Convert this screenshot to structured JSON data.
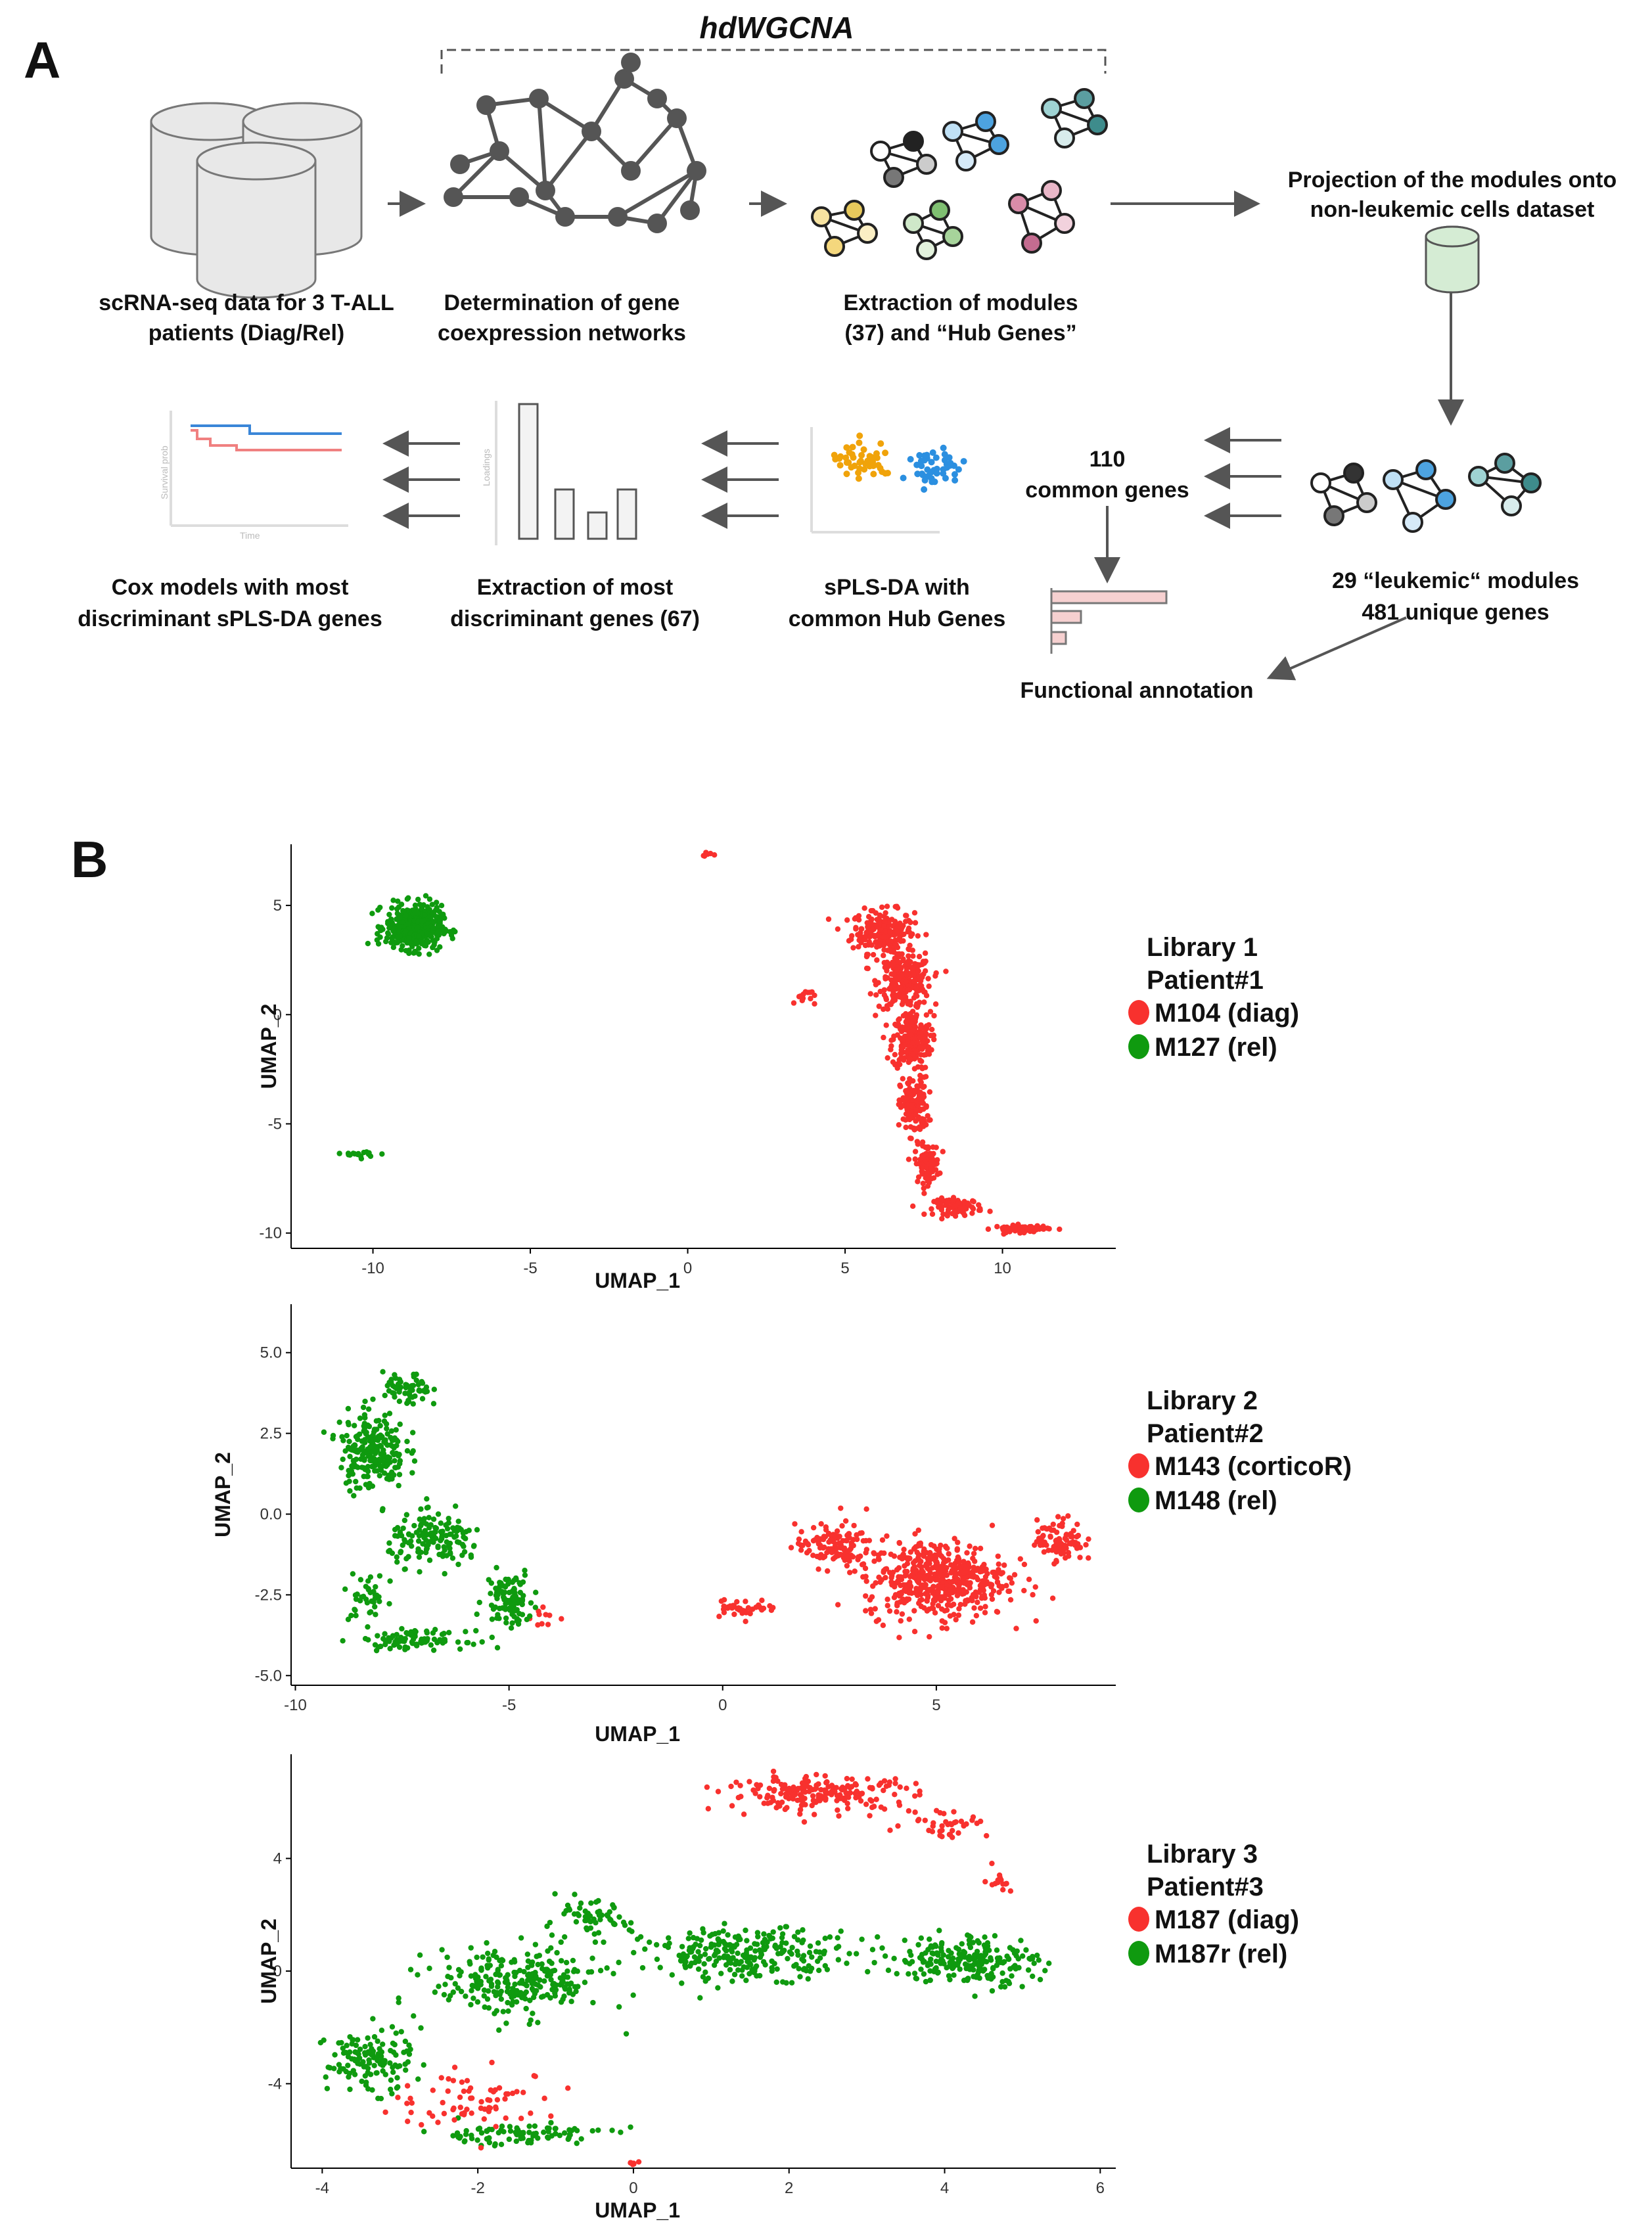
{
  "panel_a": {
    "letter": "A",
    "hdwgcna_label": "hdWGCNA",
    "steps": {
      "scrna_line1": "scRNA-seq data for 3 T-ALL",
      "scrna_line2": "patients (Diag/Rel)",
      "coexp_line1": "Determination of gene",
      "coexp_line2": "coexpression networks",
      "modules_line1": "Extraction of modules",
      "modules_line2": "(37) and “Hub Genes”",
      "projection_line1": "Projection of the modules onto",
      "projection_line2": "non-leukemic cells dataset",
      "leukemic_line1": "29 “leukemic“ modules",
      "leukemic_line2": "481 unique genes",
      "common_line1": "110",
      "common_line2": "common genes",
      "functional": "Functional annotation",
      "splsda_line1": "sPLS-DA with",
      "splsda_line2": "common Hub Genes",
      "discriminant_line1": "Extraction of most",
      "discriminant_line2": "discriminant genes (67)",
      "cox_line1": "Cox models with most",
      "cox_line2": "discriminant sPLS-DA genes"
    },
    "survival_axis": "Survival prob",
    "time_axis": "Time",
    "loadings_axis": "Loadings"
  },
  "panel_b": {
    "letter": "B",
    "colors": {
      "diag": "#f8312e",
      "rel": "#0f9a0f"
    }
  },
  "chart_data": [
    {
      "type": "scatter",
      "title": "Library 1",
      "xlabel": "UMAP_1",
      "ylabel": "UMAP_2",
      "xlim": [
        -12.6,
        13.6
      ],
      "ylim": [
        -10.7,
        7.8
      ],
      "xticks": [
        -10,
        -5,
        0,
        5,
        10
      ],
      "yticks": [
        -10,
        -5,
        0,
        5
      ],
      "legend": {
        "library": "Library 1",
        "patient": "Patient#1",
        "entries": [
          {
            "label": "M104 (diag)",
            "color": "#f8312e"
          },
          {
            "label": "M127 (rel)",
            "color": "#0f9a0f"
          }
        ]
      },
      "series": [
        {
          "name": "M104 (diag)",
          "clusters": [
            {
              "x": 6.2,
              "y": 3.8,
              "sx": 0.9,
              "sy": 0.9,
              "n": 220
            },
            {
              "x": 6.9,
              "y": 1.5,
              "sx": 0.75,
              "sy": 1.1,
              "n": 260
            },
            {
              "x": 7.1,
              "y": -1.2,
              "sx": 0.55,
              "sy": 1.2,
              "n": 220
            },
            {
              "x": 7.2,
              "y": -4.2,
              "sx": 0.4,
              "sy": 1.2,
              "n": 150
            },
            {
              "x": 7.6,
              "y": -6.8,
              "sx": 0.35,
              "sy": 0.8,
              "n": 90
            },
            {
              "x": 8.6,
              "y": -8.8,
              "sx": 0.7,
              "sy": 0.35,
              "n": 80
            },
            {
              "x": 10.6,
              "y": -9.8,
              "sx": 0.8,
              "sy": 0.15,
              "n": 70
            },
            {
              "x": 3.7,
              "y": 0.8,
              "sx": 0.3,
              "sy": 0.4,
              "n": 15
            },
            {
              "x": 0.7,
              "y": 7.3,
              "sx": 0.2,
              "sy": 0.1,
              "n": 6
            }
          ]
        },
        {
          "name": "M127 (rel)",
          "clusters": [
            {
              "x": -8.7,
              "y": 4.0,
              "sx": 0.8,
              "sy": 0.9,
              "n": 480
            },
            {
              "x": -10.2,
              "y": -6.4,
              "sx": 0.6,
              "sy": 0.15,
              "n": 16
            }
          ]
        }
      ]
    },
    {
      "type": "scatter",
      "title": "Library 2",
      "xlabel": "UMAP_1",
      "ylabel": "UMAP_2",
      "xlim": [
        -10.1,
        9.2
      ],
      "ylim": [
        -5.3,
        6.5
      ],
      "xticks": [
        -10,
        -5,
        0,
        5
      ],
      "yticks": [
        -5.0,
        -2.5,
        0.0,
        2.5,
        5.0
      ],
      "legend": {
        "library": "Library 2",
        "patient": "Patient#2",
        "entries": [
          {
            "label": "M143 (corticoR)",
            "color": "#f8312e"
          },
          {
            "label": "M148 (rel)",
            "color": "#0f9a0f"
          }
        ]
      },
      "series": [
        {
          "name": "M143 (corticoR)",
          "clusters": [
            {
              "x": 5.0,
              "y": -2.0,
              "sx": 1.5,
              "sy": 1.1,
              "n": 520
            },
            {
              "x": 2.6,
              "y": -1.0,
              "sx": 0.8,
              "sy": 0.6,
              "n": 120
            },
            {
              "x": 7.9,
              "y": -0.8,
              "sx": 0.5,
              "sy": 0.6,
              "n": 90
            },
            {
              "x": 0.5,
              "y": -2.9,
              "sx": 0.7,
              "sy": 0.25,
              "n": 40
            },
            {
              "x": -4.2,
              "y": -3.2,
              "sx": 0.3,
              "sy": 0.3,
              "n": 10
            }
          ]
        },
        {
          "name": "M148 (rel)",
          "clusters": [
            {
              "x": -8.2,
              "y": 2.0,
              "sx": 0.7,
              "sy": 1.1,
              "n": 220
            },
            {
              "x": -7.4,
              "y": 3.8,
              "sx": 0.5,
              "sy": 0.5,
              "n": 60
            },
            {
              "x": -6.7,
              "y": -0.8,
              "sx": 1.0,
              "sy": 0.7,
              "n": 150
            },
            {
              "x": -5.0,
              "y": -2.6,
              "sx": 0.5,
              "sy": 0.8,
              "n": 100
            },
            {
              "x": -7.2,
              "y": -3.9,
              "sx": 1.1,
              "sy": 0.25,
              "n": 90
            },
            {
              "x": -8.3,
              "y": -2.6,
              "sx": 0.4,
              "sy": 0.7,
              "n": 40
            }
          ]
        }
      ]
    },
    {
      "type": "scatter",
      "title": "Library 3",
      "xlabel": "UMAP_1",
      "ylabel": "UMAP_2",
      "xlim": [
        -4.4,
        6.2
      ],
      "ylim": [
        -7.0,
        7.7
      ],
      "xticks": [
        -4,
        -2,
        0,
        2,
        4,
        6
      ],
      "yticks": [
        -4,
        0,
        4
      ],
      "legend": {
        "library": "Library 3",
        "patient": "Patient#3",
        "entries": [
          {
            "label": "M187 (diag)",
            "color": "#f8312e"
          },
          {
            "label": "M187r (rel)",
            "color": "#0f9a0f"
          }
        ]
      },
      "series": [
        {
          "name": "M187r (rel)",
          "clusters": [
            {
              "x": -1.5,
              "y": -0.4,
              "sx": 1.0,
              "sy": 1.1,
              "n": 260
            },
            {
              "x": -3.4,
              "y": -3.2,
              "sx": 0.5,
              "sy": 1.0,
              "n": 130
            },
            {
              "x": 1.5,
              "y": 0.6,
              "sx": 1.2,
              "sy": 0.8,
              "n": 260
            },
            {
              "x": 4.3,
              "y": 0.4,
              "sx": 0.8,
              "sy": 0.8,
              "n": 220
            },
            {
              "x": -1.5,
              "y": -5.8,
              "sx": 1.1,
              "sy": 0.35,
              "n": 90
            },
            {
              "x": -0.6,
              "y": 1.8,
              "sx": 0.5,
              "sy": 0.6,
              "n": 60
            }
          ]
        },
        {
          "name": "M187 (diag)",
          "clusters": [
            {
              "x": 2.4,
              "y": 6.3,
              "sx": 1.1,
              "sy": 0.55,
              "n": 200
            },
            {
              "x": 4.0,
              "y": 5.3,
              "sx": 0.5,
              "sy": 0.5,
              "n": 40
            },
            {
              "x": 4.7,
              "y": 3.2,
              "sx": 0.15,
              "sy": 0.4,
              "n": 14
            },
            {
              "x": -2.0,
              "y": -4.6,
              "sx": 1.0,
              "sy": 0.9,
              "n": 70
            },
            {
              "x": 0.0,
              "y": -6.8,
              "sx": 0.1,
              "sy": 0.1,
              "n": 6
            }
          ]
        }
      ]
    }
  ]
}
